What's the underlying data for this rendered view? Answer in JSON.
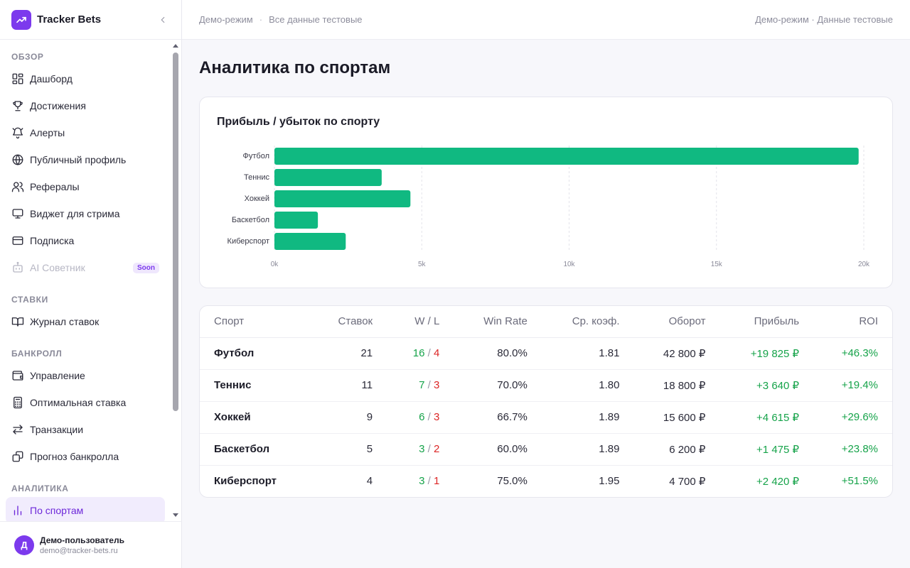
{
  "brand": {
    "name": "Tracker Bets"
  },
  "topbar": {
    "left": "Демо-режим",
    "left_sub": "Все данные тестовые",
    "right": "Демо-режим · Данные тестовые"
  },
  "sidebar": {
    "sections": [
      {
        "title": "ОБЗОР",
        "items": [
          {
            "label": "Дашборд",
            "icon": "dashboard-icon"
          },
          {
            "label": "Достижения",
            "icon": "trophy-icon"
          },
          {
            "label": "Алерты",
            "icon": "bell-icon"
          },
          {
            "label": "Публичный профиль",
            "icon": "globe-icon"
          },
          {
            "label": "Рефералы",
            "icon": "users-icon"
          },
          {
            "label": "Виджет для стрима",
            "icon": "monitor-icon"
          },
          {
            "label": "Подписка",
            "icon": "credit-card-icon"
          },
          {
            "label": "AI Советник",
            "icon": "bot-icon",
            "badge": "Soon",
            "disabled": true
          }
        ]
      },
      {
        "title": "СТАВКИ",
        "items": [
          {
            "label": "Журнал ставок",
            "icon": "book-icon"
          }
        ]
      },
      {
        "title": "БАНКРОЛЛ",
        "items": [
          {
            "label": "Управление",
            "icon": "wallet-icon"
          },
          {
            "label": "Оптимальная ставка",
            "icon": "calculator-icon"
          },
          {
            "label": "Транзакции",
            "icon": "arrows-icon"
          },
          {
            "label": "Прогноз банкролла",
            "icon": "forecast-icon"
          }
        ]
      },
      {
        "title": "АНАЛИТИКА",
        "items": [
          {
            "label": "По спортам",
            "icon": "bar-chart-icon",
            "active": true
          }
        ]
      }
    ]
  },
  "user": {
    "initial": "Д",
    "name": "Демо-пользователь",
    "email": "demo@tracker-bets.ru"
  },
  "page": {
    "title": "Аналитика по спортам"
  },
  "chart_data": {
    "type": "bar",
    "orientation": "horizontal",
    "title": "Прибыль / убыток по спорту",
    "categories": [
      "Футбол",
      "Теннис",
      "Хоккей",
      "Баскетбол",
      "Киберспорт"
    ],
    "values": [
      19825,
      3640,
      4615,
      1475,
      2420
    ],
    "xlim": [
      0,
      20000
    ],
    "xticks": [
      "0k",
      "5k",
      "10k",
      "15k",
      "20k"
    ],
    "color": "#10b981",
    "grid": "vertical dashed"
  },
  "table": {
    "headers": [
      "Спорт",
      "Ставок",
      "W / L",
      "Win Rate",
      "Ср. коэф.",
      "Оборот",
      "Прибыль",
      "ROI"
    ],
    "rows": [
      {
        "sport": "Футбол",
        "bets": "21",
        "w": "16",
        "l": "4",
        "winrate": "80.0%",
        "odds": "1.81",
        "turnover": "42 800 ₽",
        "profit": "+19 825 ₽",
        "roi": "+46.3%"
      },
      {
        "sport": "Теннис",
        "bets": "11",
        "w": "7",
        "l": "3",
        "winrate": "70.0%",
        "odds": "1.80",
        "turnover": "18 800 ₽",
        "profit": "+3 640 ₽",
        "roi": "+19.4%"
      },
      {
        "sport": "Хоккей",
        "bets": "9",
        "w": "6",
        "l": "3",
        "winrate": "66.7%",
        "odds": "1.89",
        "turnover": "15 600 ₽",
        "profit": "+4 615 ₽",
        "roi": "+29.6%"
      },
      {
        "sport": "Баскетбол",
        "bets": "5",
        "w": "3",
        "l": "2",
        "winrate": "60.0%",
        "odds": "1.89",
        "turnover": "6 200 ₽",
        "profit": "+1 475 ₽",
        "roi": "+23.8%"
      },
      {
        "sport": "Киберспорт",
        "bets": "4",
        "w": "3",
        "l": "1",
        "winrate": "75.0%",
        "odds": "1.95",
        "turnover": "4 700 ₽",
        "profit": "+2 420 ₽",
        "roi": "+51.5%"
      }
    ]
  },
  "colors": {
    "accent": "#7c3aed",
    "positive": "#16a34a",
    "negative": "#dc2626",
    "bar": "#10b981"
  }
}
